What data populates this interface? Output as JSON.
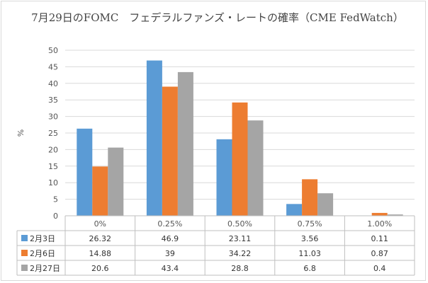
{
  "chart_data": {
    "type": "bar",
    "title": "7月29日のFOMC　フェデラルファンズ・レートの確率（CME FedWatch）",
    "xlabel": "",
    "ylabel": "%",
    "ylim": [
      0,
      50
    ],
    "yticks": [
      0,
      5,
      10,
      15,
      20,
      25,
      30,
      35,
      40,
      45,
      50
    ],
    "grid": true,
    "legend": "data-table",
    "categories": [
      "0%",
      "0.25%",
      "0.50%",
      "0.75%",
      "1.00%"
    ],
    "series": [
      {
        "name": "2月3日",
        "color": "#5b9bd5",
        "values": [
          26.32,
          46.9,
          23.11,
          3.56,
          0.11
        ]
      },
      {
        "name": "2月6日",
        "color": "#ed7d31",
        "values": [
          14.88,
          39,
          34.22,
          11.03,
          0.87
        ]
      },
      {
        "name": "2月27日",
        "color": "#a5a5a5",
        "values": [
          20.6,
          43.4,
          28.8,
          6.8,
          0.4
        ]
      }
    ]
  }
}
